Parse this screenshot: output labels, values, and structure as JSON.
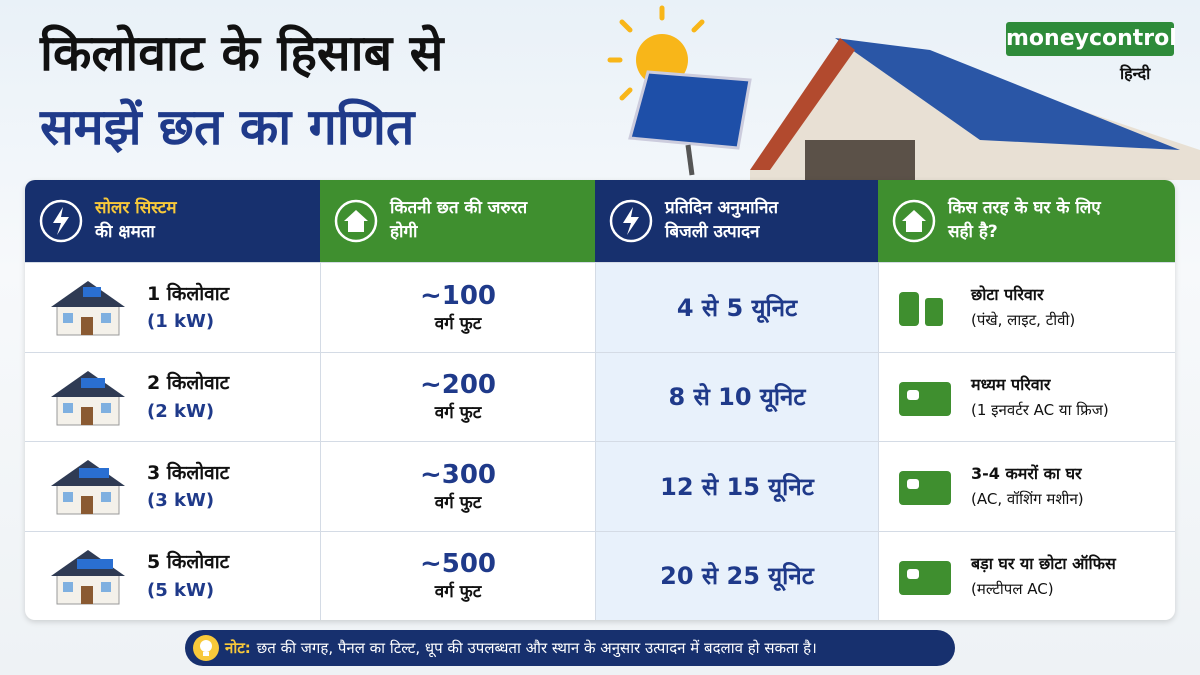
{
  "header": {
    "title": [
      "किलोवाट के हिसाब से",
      "समझें छत का गणित"
    ],
    "brand": "moneycontrol",
    "brand_sub": "हिन्दी"
  },
  "table": {
    "columns": [
      [
        "सोलर सिस्टम",
        "की क्षमता"
      ],
      [
        "कितनी छत की जरुरत",
        "होगी"
      ],
      [
        "प्रतिदिन अनुमानित",
        "बिजली उत्पादन"
      ],
      [
        "किस तरह के घर के लिए",
        "सही है?"
      ]
    ],
    "rows": [
      [
        [
          "1 किलोवाट",
          "(1 kW)"
        ],
        [
          "~100",
          "वर्ग फुट"
        ],
        "4 से 5 यूनिट",
        [
          "छोटा परिवार",
          "(पंखे, लाइट, टीवी)"
        ]
      ],
      [
        [
          "2 किलोवाट",
          "(2 kW)"
        ],
        [
          "~200",
          "वर्ग फुट"
        ],
        "8 से 10 यूनिट",
        [
          "मध्यम परिवार",
          "(1 इनवर्टर AC या फ्रिज)"
        ]
      ],
      [
        [
          "3 किलोवाट",
          "(3 kW)"
        ],
        [
          "~300",
          "वर्ग फुट"
        ],
        "12 से 15 यूनिट",
        [
          "3-4 कमरों का घर",
          "(AC, वॉशिंग मशीन)"
        ]
      ],
      [
        [
          "5 किलोवाट",
          "(5 kW)"
        ],
        [
          "~500",
          "वर्ग फुट"
        ],
        "20 से 25 यूनिट",
        [
          "बड़ा घर या छोटा ऑफिस",
          "(मल्टीपल AC)"
        ]
      ]
    ]
  },
  "note": {
    "label": "नोट:",
    "text": "छत की जगह, पैनल का टिल्ट, धूप की उपलब्धता और स्थान के अनुसार उत्पादन में बदलाव हो सकता है।"
  }
}
